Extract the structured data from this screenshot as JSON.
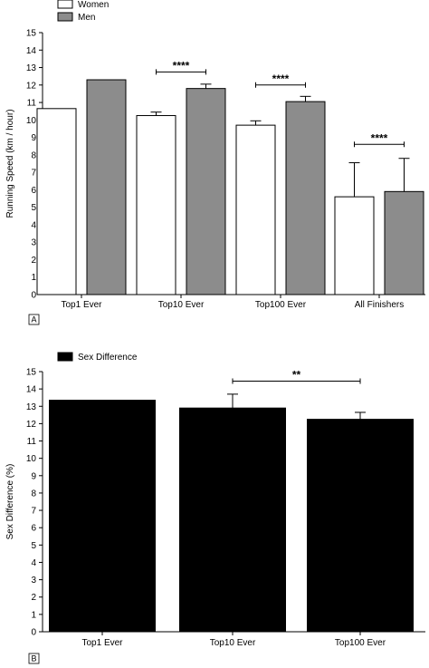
{
  "chart_data": [
    {
      "type": "bar",
      "panel_label": "A",
      "categories": [
        "Top1 Ever",
        "Top10 Ever",
        "Top100 Ever",
        "All Finishers"
      ],
      "ylabel": "Running Speed (km / hour)",
      "ylim": [
        0,
        15
      ],
      "yticks": [
        0,
        1,
        2,
        3,
        4,
        5,
        6,
        7,
        8,
        9,
        10,
        11,
        12,
        13,
        14,
        15
      ],
      "legend_position": "top-left",
      "series": [
        {
          "name": "Women",
          "color": "#ffffff",
          "values": [
            10.65,
            10.25,
            9.7,
            5.6
          ],
          "errors": [
            0,
            0.2,
            0.25,
            1.95
          ]
        },
        {
          "name": "Men",
          "color": "#8c8c8c",
          "values": [
            12.3,
            11.8,
            11.05,
            5.9
          ],
          "errors": [
            0,
            0.25,
            0.3,
            1.9
          ]
        }
      ],
      "significance": [
        {
          "category_index": 1,
          "label": "****",
          "y": 12.75
        },
        {
          "category_index": 2,
          "label": "****",
          "y": 12.0
        },
        {
          "category_index": 3,
          "label": "****",
          "y": 8.6
        }
      ]
    },
    {
      "type": "bar",
      "panel_label": "B",
      "categories": [
        "Top1 Ever",
        "Top10 Ever",
        "Top100 Ever"
      ],
      "ylabel": "Sex Difference (%)",
      "ylim": [
        0,
        15
      ],
      "yticks": [
        0,
        1,
        2,
        3,
        4,
        5,
        6,
        7,
        8,
        9,
        10,
        11,
        12,
        13,
        14,
        15
      ],
      "legend_position": "top-left",
      "series": [
        {
          "name": "Sex Difference",
          "color": "#000000",
          "values": [
            13.35,
            12.9,
            12.25
          ],
          "errors": [
            0,
            0.8,
            0.4
          ]
        }
      ],
      "significance": [
        {
          "from_index": 1,
          "to_index": 2,
          "label": "**",
          "y": 14.45
        }
      ]
    }
  ]
}
